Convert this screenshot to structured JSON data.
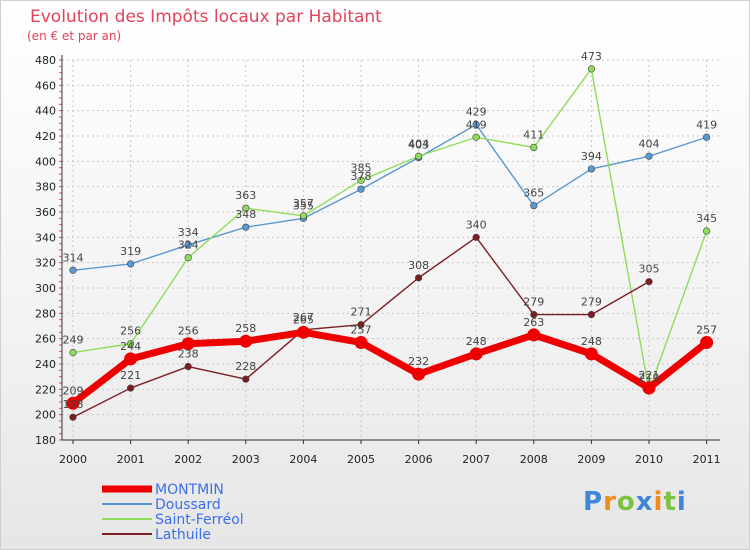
{
  "chart_data": {
    "type": "line",
    "title": "Evolution des Impôts locaux par Habitant",
    "subtitle": "(en € et par an)",
    "x": [
      "2000",
      "2001",
      "2002",
      "2003",
      "2004",
      "2005",
      "2006",
      "2007",
      "2008",
      "2009",
      "2010",
      "2011"
    ],
    "ylim": [
      180,
      480
    ],
    "yticks": [
      180,
      200,
      220,
      240,
      260,
      280,
      300,
      320,
      340,
      360,
      380,
      400,
      420,
      440,
      460,
      480
    ],
    "grid": true,
    "legend": "bottom-left",
    "series": [
      {
        "name": "MONTMIN",
        "color": "#ee0000",
        "values": [
          209,
          244,
          256,
          258,
          265,
          257,
          232,
          248,
          263,
          248,
          221,
          257
        ]
      },
      {
        "name": "Doussard",
        "color": "#5b98cf",
        "values": [
          314,
          319,
          334,
          348,
          355,
          378,
          403,
          429,
          365,
          394,
          404,
          419
        ]
      },
      {
        "name": "Saint-Ferréol",
        "color": "#8edc5a",
        "values": [
          249,
          256,
          324,
          363,
          357,
          385,
          404,
          419,
          411,
          473,
          219,
          345
        ]
      },
      {
        "name": "Lathuile",
        "color": "#7a1e22",
        "values": [
          198,
          221,
          238,
          228,
          267,
          271,
          308,
          340,
          279,
          279,
          305,
          null
        ]
      }
    ]
  },
  "logo": {
    "letters": [
      "P",
      "r",
      "o",
      "x",
      "i",
      "t",
      "i"
    ],
    "colors": [
      "#3f86d8",
      "#f28a1c",
      "#7cc241",
      "#3f86d8",
      "#f28a1c",
      "#7cc241",
      "#3f86d8"
    ]
  }
}
